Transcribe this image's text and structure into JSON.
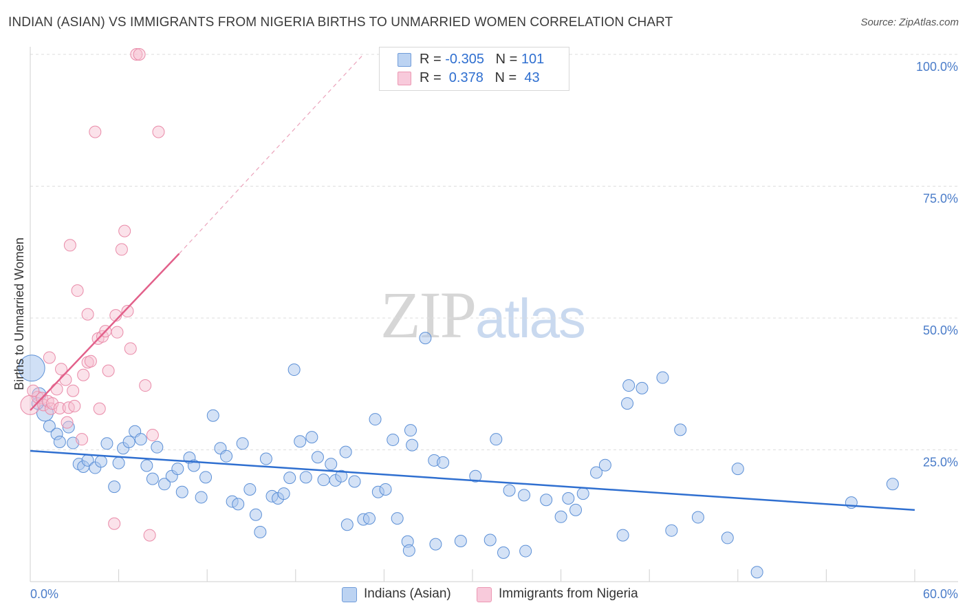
{
  "title": "INDIAN (ASIAN) VS IMMIGRANTS FROM NIGERIA BIRTHS TO UNMARRIED WOMEN CORRELATION CHART",
  "source": "Source: ZipAtlas.com",
  "watermark": {
    "zip": "ZIP",
    "atlas": "atlas"
  },
  "legend": {
    "rows": [
      {
        "r_label": "R = ",
        "r_value": "-0.305",
        "n_label": "N = ",
        "n_value": "101"
      },
      {
        "r_label": "R = ",
        "r_value": " 0.378",
        "n_label": "N = ",
        "n_value": " 43"
      }
    ]
  },
  "chart_data": {
    "type": "scatter",
    "title": "INDIAN (ASIAN) VS IMMIGRANTS FROM NIGERIA BIRTHS TO UNMARRIED WOMEN CORRELATION CHART",
    "xlabel": "",
    "ylabel": "Births to Unmarried Women",
    "xlim": [
      0,
      60
    ],
    "ylim": [
      0,
      100
    ],
    "x_tick_labels": [
      "0.0%",
      "60.0%"
    ],
    "y_tick_labels": [
      "100.0%",
      "75.0%",
      "50.0%",
      "25.0%"
    ],
    "y_tick_values": [
      100,
      75,
      50,
      25
    ],
    "grid": true,
    "legend_position": "bottom-center",
    "colors": {
      "indians_fill": "#a9c6ee",
      "indians_stroke": "#5b8fd6",
      "indians_line": "#2f6fd0",
      "nigeria_fill": "#f6bfd0",
      "nigeria_stroke": "#e98aa8",
      "nigeria_line": "#e2608a",
      "axis_text": "#4a7cc9",
      "grid": "#dddddd"
    },
    "series": [
      {
        "name": "Indians (Asian)",
        "r": -0.305,
        "n": 101,
        "trend": {
          "x": [
            0,
            60
          ],
          "y": [
            24.8,
            13.6
          ]
        },
        "points": [
          [
            0.1,
            40.5
          ],
          [
            0.6,
            35.5
          ],
          [
            1.0,
            32
          ],
          [
            1.3,
            29.5
          ],
          [
            1.8,
            28
          ],
          [
            2.0,
            26.5
          ],
          [
            2.6,
            29.3
          ],
          [
            2.9,
            26.3
          ],
          [
            3.3,
            22.3
          ],
          [
            3.6,
            21.8
          ],
          [
            3.9,
            23
          ],
          [
            4.4,
            21.6
          ],
          [
            4.8,
            22.8
          ],
          [
            5.2,
            26.2
          ],
          [
            5.7,
            18
          ],
          [
            6.0,
            22.5
          ],
          [
            6.3,
            25.3
          ],
          [
            6.7,
            26.5
          ],
          [
            7.1,
            28.5
          ],
          [
            7.5,
            27
          ],
          [
            7.9,
            22
          ],
          [
            8.3,
            19.5
          ],
          [
            8.6,
            25.5
          ],
          [
            9.1,
            18.5
          ],
          [
            9.6,
            20
          ],
          [
            10.0,
            21.4
          ],
          [
            10.3,
            17
          ],
          [
            10.8,
            23.5
          ],
          [
            11.1,
            22
          ],
          [
            11.6,
            16
          ],
          [
            11.9,
            19.8
          ],
          [
            12.4,
            31.5
          ],
          [
            12.9,
            25.3
          ],
          [
            13.3,
            23.8
          ],
          [
            13.7,
            15.2
          ],
          [
            14.1,
            14.7
          ],
          [
            14.4,
            26.2
          ],
          [
            14.9,
            17.5
          ],
          [
            15.3,
            12.7
          ],
          [
            15.6,
            9.4
          ],
          [
            16.0,
            23.3
          ],
          [
            16.4,
            16.2
          ],
          [
            16.8,
            15.8
          ],
          [
            17.2,
            16.7
          ],
          [
            17.6,
            19.7
          ],
          [
            17.9,
            40.2
          ],
          [
            18.3,
            26.6
          ],
          [
            18.7,
            19.8
          ],
          [
            19.1,
            27.4
          ],
          [
            19.5,
            23.6
          ],
          [
            19.9,
            19.3
          ],
          [
            20.4,
            22.3
          ],
          [
            20.7,
            19.2
          ],
          [
            21.1,
            20
          ],
          [
            21.4,
            24.6
          ],
          [
            21.5,
            10.8
          ],
          [
            22.0,
            19
          ],
          [
            22.6,
            11.8
          ],
          [
            23.0,
            12
          ],
          [
            23.4,
            30.8
          ],
          [
            23.6,
            17
          ],
          [
            24.1,
            17.5
          ],
          [
            24.6,
            26.9
          ],
          [
            24.9,
            12
          ],
          [
            25.6,
            7.6
          ],
          [
            25.8,
            28.7
          ],
          [
            25.9,
            25.9
          ],
          [
            25.7,
            5.9
          ],
          [
            26.8,
            46.2
          ],
          [
            27.4,
            23
          ],
          [
            27.5,
            7.1
          ],
          [
            28.0,
            22.6
          ],
          [
            29.2,
            7.7
          ],
          [
            30.2,
            20
          ],
          [
            31.2,
            7.9
          ],
          [
            31.6,
            27
          ],
          [
            32.1,
            5.5
          ],
          [
            32.5,
            17.3
          ],
          [
            33.5,
            16.4
          ],
          [
            33.6,
            5.8
          ],
          [
            35.0,
            15.5
          ],
          [
            36.0,
            12.3
          ],
          [
            36.5,
            15.8
          ],
          [
            37.0,
            13.6
          ],
          [
            37.5,
            16.7
          ],
          [
            38.4,
            20.7
          ],
          [
            39.0,
            22.1
          ],
          [
            40.2,
            8.8
          ],
          [
            40.5,
            33.8
          ],
          [
            40.6,
            37.2
          ],
          [
            41.5,
            36.7
          ],
          [
            42.9,
            38.7
          ],
          [
            43.5,
            9.7
          ],
          [
            44.1,
            28.8
          ],
          [
            45.3,
            12.2
          ],
          [
            47.3,
            8.3
          ],
          [
            48.0,
            21.4
          ],
          [
            49.3,
            1.8
          ],
          [
            55.7,
            15
          ],
          [
            58.5,
            18.5
          ],
          [
            0.5,
            33.8
          ]
        ]
      },
      {
        "name": "Immigrants from Nigeria",
        "r": 0.378,
        "n": 43,
        "trend": {
          "x": [
            0,
            10.1
          ],
          "y": [
            32.5,
            62.2
          ]
        },
        "trend_extension": {
          "x": [
            10.1,
            22.6
          ],
          "y": [
            62.2,
            100
          ]
        },
        "points": [
          [
            0.0,
            33.5
          ],
          [
            0.5,
            35
          ],
          [
            0.8,
            34.8
          ],
          [
            0.9,
            33.5
          ],
          [
            1.2,
            34.2
          ],
          [
            1.3,
            42.5
          ],
          [
            1.4,
            32.8
          ],
          [
            1.5,
            33.8
          ],
          [
            1.8,
            36.5
          ],
          [
            2.0,
            32.9
          ],
          [
            2.1,
            40.3
          ],
          [
            2.4,
            38.3
          ],
          [
            2.5,
            30.2
          ],
          [
            2.6,
            33
          ],
          [
            2.7,
            63.8
          ],
          [
            2.9,
            36.2
          ],
          [
            3.0,
            33.3
          ],
          [
            3.2,
            55.2
          ],
          [
            3.5,
            27
          ],
          [
            3.6,
            39.2
          ],
          [
            3.9,
            50.7
          ],
          [
            3.9,
            41.6
          ],
          [
            4.1,
            41.8
          ],
          [
            4.4,
            85.3
          ],
          [
            4.6,
            46.1
          ],
          [
            4.7,
            32.8
          ],
          [
            4.9,
            46.5
          ],
          [
            5.1,
            47.5
          ],
          [
            5.3,
            40
          ],
          [
            5.7,
            11
          ],
          [
            5.8,
            50.5
          ],
          [
            5.9,
            47.3
          ],
          [
            6.2,
            63
          ],
          [
            6.4,
            66.5
          ],
          [
            6.6,
            51.3
          ],
          [
            6.8,
            44.2
          ],
          [
            7.2,
            100
          ],
          [
            7.4,
            100
          ],
          [
            7.8,
            37.2
          ],
          [
            8.1,
            8.8
          ],
          [
            8.3,
            27.8
          ],
          [
            8.7,
            85.3
          ],
          [
            0.2,
            36.2
          ]
        ]
      }
    ]
  },
  "bottom_legend": [
    {
      "label": "Indians (Asian)"
    },
    {
      "label": "Immigrants from Nigeria"
    }
  ]
}
